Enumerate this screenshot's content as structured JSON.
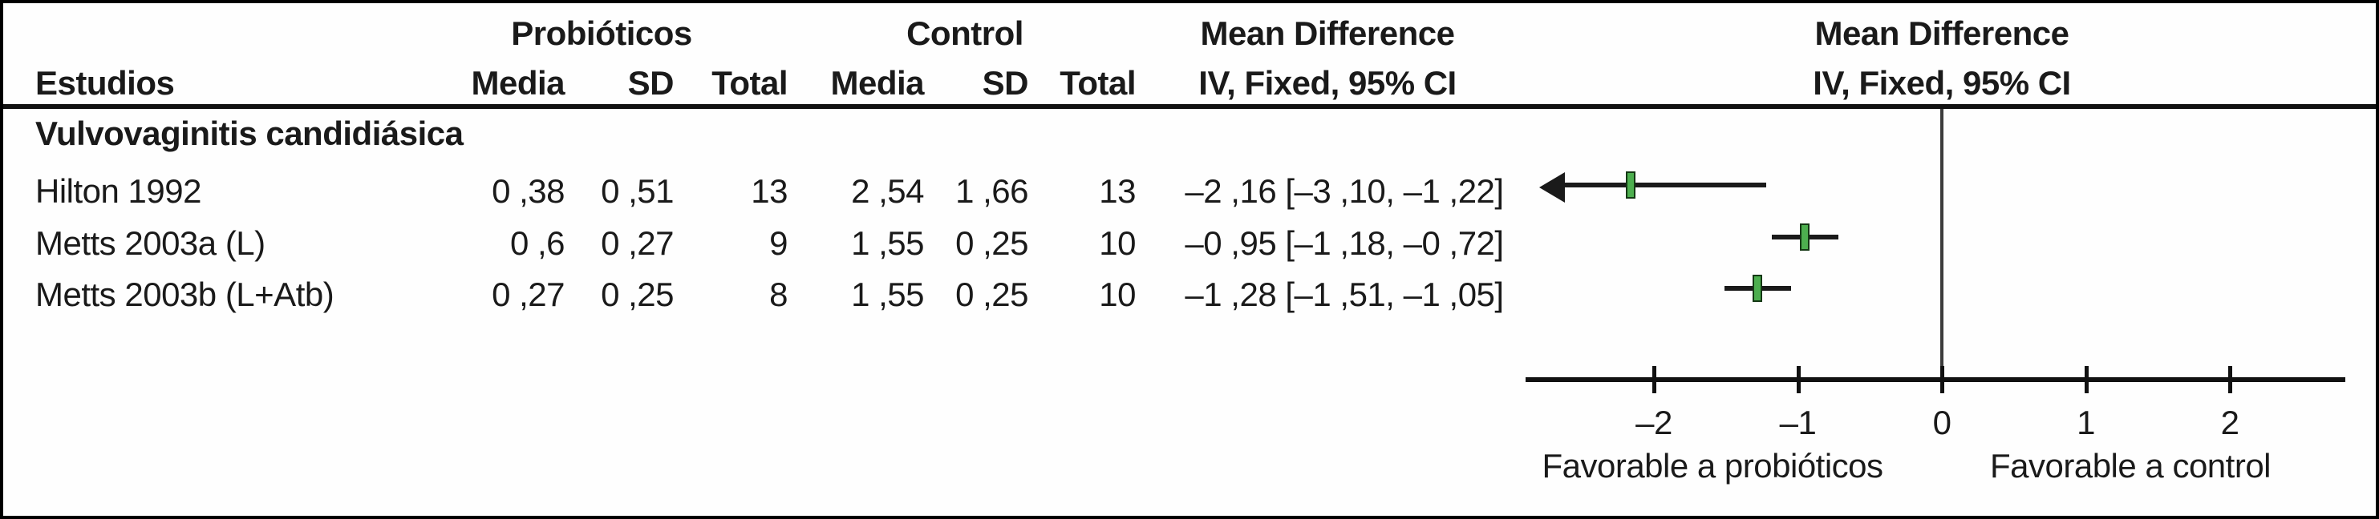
{
  "table": {
    "group1_header": "Probióticos",
    "group2_header": "Control",
    "md_header": "Mean Difference",
    "md_subheader": "IV, Fixed, 95% CI",
    "md_header_plot": "Mean Difference",
    "md_subheader_plot": "IV, Fixed, 95% CI",
    "columns": {
      "study": "Estudios",
      "mean1": "Media",
      "sd1": "SD",
      "total1": "Total",
      "mean2": "Media",
      "sd2": "SD",
      "total2": "Total"
    },
    "section_title": "Vulvovaginitis candidiásica",
    "rows": [
      {
        "study": "Hilton 1992",
        "p_mean": "0 ,38",
        "p_sd": "0 ,51",
        "p_total": "13",
        "c_mean": "2 ,54",
        "c_sd": "1 ,66",
        "c_total": "13",
        "md_ci": "–2 ,16 [–3 ,10, –1 ,22]"
      },
      {
        "study": "Metts 2003a (L)",
        "p_mean": "0 ,6",
        "p_sd": "0 ,27",
        "p_total": "9",
        "c_mean": "1 ,55",
        "c_sd": "0 ,25",
        "c_total": "10",
        "md_ci": "–0 ,95 [–1 ,18, –0 ,72]"
      },
      {
        "study": "Metts 2003b (L+Atb)",
        "p_mean": "0 ,27",
        "p_sd": "0 ,25",
        "p_total": "8",
        "c_mean": "1 ,55",
        "c_sd": "0 ,25",
        "c_total": "10",
        "md_ci": "–1 ,28 [–1 ,51, –1 ,05]"
      }
    ]
  },
  "chart_data": {
    "type": "forest",
    "title": "Mean Difference IV, Fixed, 95% CI",
    "x_axis": {
      "ticks": [
        -2,
        -1,
        0,
        1,
        2
      ],
      "tick_labels": [
        "–2",
        "–1",
        "0",
        "1",
        "2"
      ],
      "min": -2.9,
      "max": 2.8,
      "zero_line": 0
    },
    "points": [
      {
        "study": "Hilton 1992",
        "mean": -2.16,
        "ci_low": -3.1,
        "ci_high": -1.22,
        "clipped_low": true
      },
      {
        "study": "Metts 2003a (L)",
        "mean": -0.95,
        "ci_low": -1.18,
        "ci_high": -0.72,
        "clipped_low": false
      },
      {
        "study": "Metts 2003b (L+Atb)",
        "mean": -1.28,
        "ci_low": -1.51,
        "ci_high": -1.05,
        "clipped_low": false
      }
    ],
    "xlabel_left": "Favorable a probióticos",
    "xlabel_right": "Favorable a control",
    "marker_color": "#4daf4f",
    "grid": false,
    "legend": false
  }
}
